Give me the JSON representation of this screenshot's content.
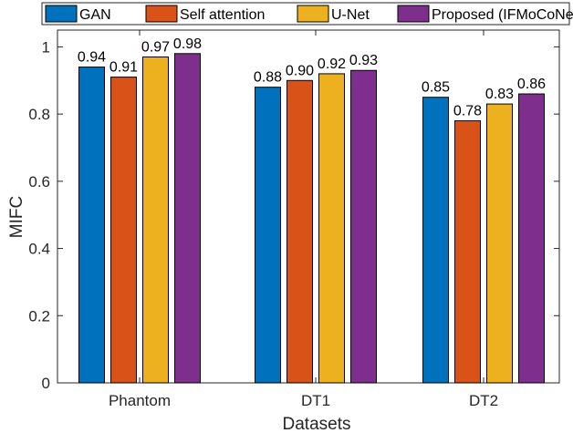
{
  "chart_data": {
    "type": "bar",
    "title": "",
    "xlabel": "Datasets",
    "ylabel": "MIFC",
    "ylim": [
      0,
      1.05
    ],
    "yticks": [
      0,
      0.2,
      0.4,
      0.6,
      0.8,
      1
    ],
    "categories": [
      "Phantom",
      "DT1",
      "DT2"
    ],
    "series": [
      {
        "name": "GAN",
        "color": "#0072BD",
        "values": [
          0.94,
          0.88,
          0.85
        ],
        "labels": [
          "0.94",
          "0.88",
          "0.85"
        ]
      },
      {
        "name": "Self attention",
        "color": "#D95319",
        "values": [
          0.91,
          0.9,
          0.78
        ],
        "labels": [
          "0.91",
          "0.90",
          "0.78"
        ]
      },
      {
        "name": "U-Net",
        "color": "#EDB120",
        "values": [
          0.97,
          0.92,
          0.83
        ],
        "labels": [
          "0.97",
          "0.92",
          "0.83"
        ]
      },
      {
        "name": "Proposed (IFMoCoNet)",
        "color": "#7E2F8E",
        "values": [
          0.98,
          0.93,
          0.86
        ],
        "labels": [
          "0.98",
          "0.93",
          "0.86"
        ]
      }
    ],
    "legend_position": "top",
    "grid": false
  }
}
